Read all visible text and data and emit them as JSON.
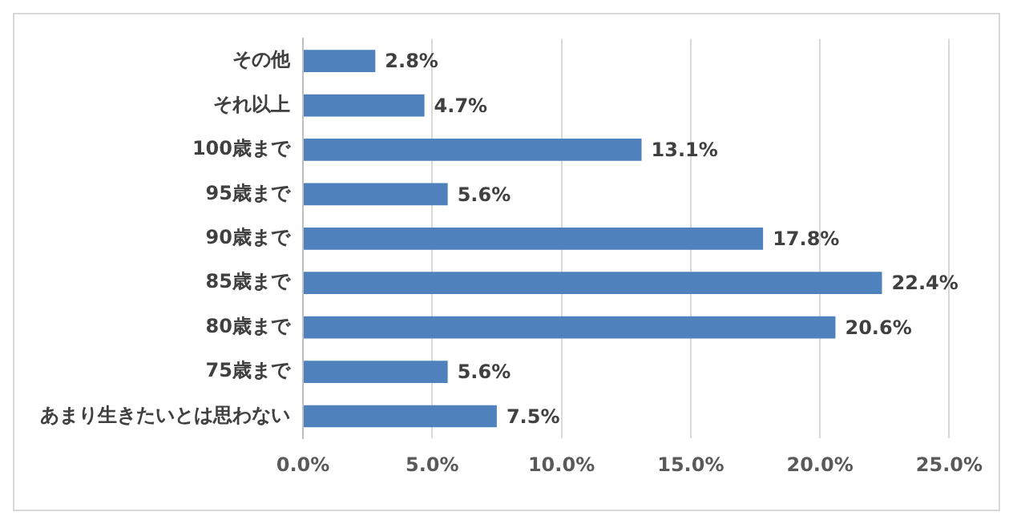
{
  "chart_data": {
    "type": "bar",
    "orientation": "horizontal",
    "categories": [
      "その他",
      "それ以上",
      "100歳まで",
      "95歳まで",
      "90歳まで",
      "85歳まで",
      "80歳まで",
      "75歳まで",
      "あまり生きたいとは思わない"
    ],
    "values": [
      2.8,
      4.7,
      13.1,
      5.6,
      17.8,
      22.4,
      20.6,
      5.6,
      7.5
    ],
    "value_labels": [
      "2.8%",
      "4.7%",
      "13.1%",
      "5.6%",
      "17.8%",
      "22.4%",
      "20.6%",
      "5.6%",
      "7.5%"
    ],
    "color": "#4f81bd",
    "xlim": [
      0,
      25
    ],
    "xticks": [
      {
        "value": 0,
        "label": "0.0%"
      },
      {
        "value": 5,
        "label": "5.0%"
      },
      {
        "value": 10,
        "label": "10.0%"
      },
      {
        "value": 15,
        "label": "15.0%"
      },
      {
        "value": 20,
        "label": "20.0%"
      },
      {
        "value": 25,
        "label": "25.0%"
      }
    ],
    "grid": "x",
    "legend": false
  }
}
